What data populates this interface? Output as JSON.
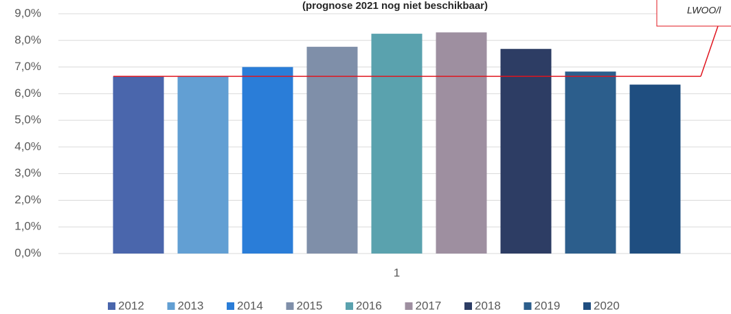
{
  "chart_data": {
    "type": "bar",
    "title": "(prognose 2021 nog niet beschikbaar)",
    "categories": [
      "1"
    ],
    "series": [
      {
        "name": "2012",
        "color": "#4a66ac",
        "values": [
          6.65
        ]
      },
      {
        "name": "2013",
        "color": "#629fd3",
        "values": [
          6.65
        ]
      },
      {
        "name": "2014",
        "color": "#2a7dd8",
        "values": [
          7.0
        ]
      },
      {
        "name": "2015",
        "color": "#7f8fa9",
        "values": [
          7.76
        ]
      },
      {
        "name": "2016",
        "color": "#5aa2ae",
        "values": [
          8.25
        ]
      },
      {
        "name": "2017",
        "color": "#9e8fa0",
        "values": [
          8.3
        ]
      },
      {
        "name": "2018",
        "color": "#2d3d64",
        "values": [
          7.68
        ]
      },
      {
        "name": "2019",
        "color": "#2c5e8c",
        "values": [
          6.83
        ]
      },
      {
        "name": "2020",
        "color": "#1f4e80",
        "values": [
          6.34
        ]
      }
    ],
    "reference_line": {
      "value": 6.65,
      "color": "#e0141e"
    },
    "annotation": "LWOO/l",
    "ylim": [
      0,
      9
    ],
    "yticks": [
      {
        "value": 0,
        "label": "0,0%"
      },
      {
        "value": 1,
        "label": "1,0%"
      },
      {
        "value": 2,
        "label": "2,0%"
      },
      {
        "value": 3,
        "label": "3,0%"
      },
      {
        "value": 4,
        "label": "4,0%"
      },
      {
        "value": 5,
        "label": "5,0%"
      },
      {
        "value": 6,
        "label": "6,0%"
      },
      {
        "value": 7,
        "label": "7,0%"
      },
      {
        "value": 8,
        "label": "8,0%"
      },
      {
        "value": 9,
        "label": "9,0%"
      }
    ],
    "grid": true,
    "legend": "bottom"
  }
}
